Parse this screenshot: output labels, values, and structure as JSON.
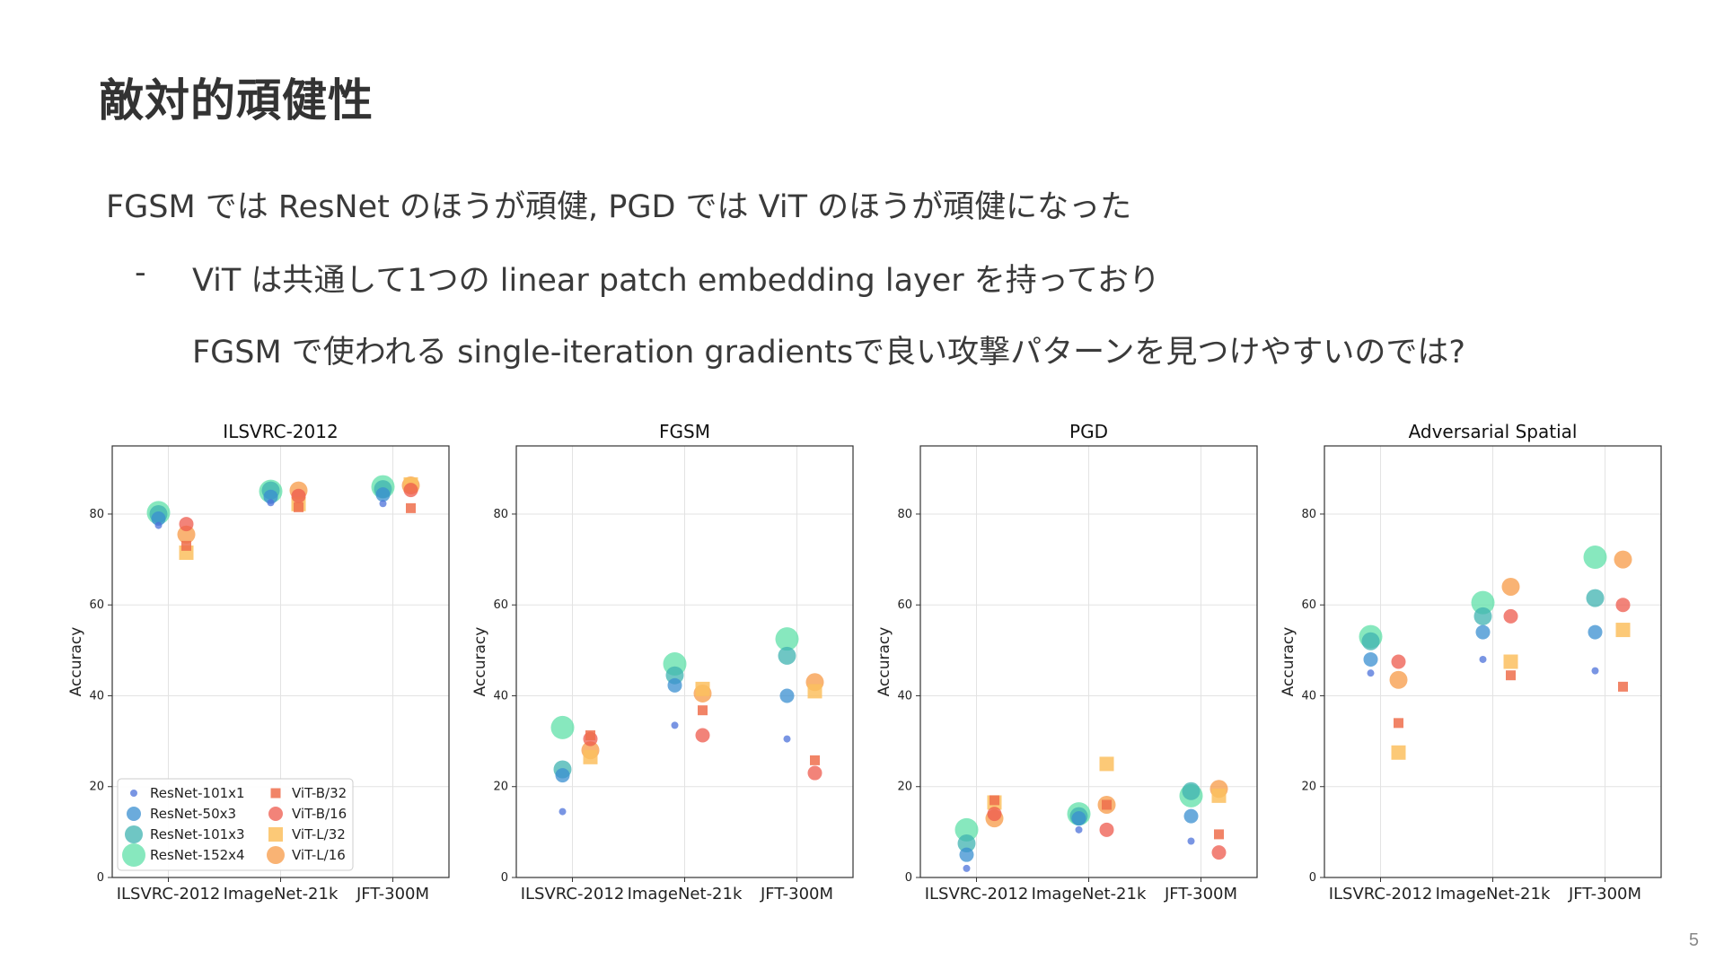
{
  "slide": {
    "title": "敵対的頑健性",
    "line1": "FGSM では ResNet のほうが頑健, PGD では ViT のほうが頑健になった",
    "bullet_marker": "-",
    "line2": "ViT は共通して1つの linear patch embedding layer を持っており",
    "line3": "FGSM で使われる single-iteration gradientsで良い攻撃パターンを見つけやすいのでは?",
    "page_number": "5"
  },
  "chart_data": [
    {
      "type": "scatter",
      "title": "ILSVRC-2012",
      "ylabel": "Accuracy",
      "categories": [
        "ILSVRC-2012",
        "ImageNet-21k",
        "JFT-300M"
      ],
      "ylim": [
        0,
        95
      ],
      "yticks": [
        0,
        20,
        40,
        60,
        80
      ],
      "grid": true,
      "legend": "lower-left",
      "series": [
        {
          "name": "ResNet-101x1",
          "values": [
            77.5,
            82.5,
            82.3
          ]
        },
        {
          "name": "ResNet-50x3",
          "values": [
            79.0,
            83.8,
            84.3
          ]
        },
        {
          "name": "ResNet-101x3",
          "values": [
            80.0,
            85.2,
            85.5
          ]
        },
        {
          "name": "ResNet-152x4",
          "values": [
            80.3,
            85.0,
            86.0
          ]
        },
        {
          "name": "ViT-B/32",
          "values": [
            73.0,
            81.5,
            81.3
          ]
        },
        {
          "name": "ViT-B/16",
          "values": [
            77.8,
            84.0,
            85.3
          ]
        },
        {
          "name": "ViT-L/32",
          "values": [
            71.5,
            82.2,
            86.5
          ]
        },
        {
          "name": "ViT-L/16",
          "values": [
            75.5,
            85.2,
            86.3
          ]
        }
      ]
    },
    {
      "type": "scatter",
      "title": "FGSM",
      "ylabel": "Accuracy",
      "categories": [
        "ILSVRC-2012",
        "ImageNet-21k",
        "JFT-300M"
      ],
      "ylim": [
        0,
        95
      ],
      "yticks": [
        0,
        20,
        40,
        60,
        80
      ],
      "grid": true,
      "series": [
        {
          "name": "ResNet-101x1",
          "values": [
            14.5,
            33.5,
            30.5
          ]
        },
        {
          "name": "ResNet-50x3",
          "values": [
            22.5,
            42.3,
            40.0
          ]
        },
        {
          "name": "ResNet-101x3",
          "values": [
            23.8,
            44.5,
            48.8
          ]
        },
        {
          "name": "ResNet-152x4",
          "values": [
            33.0,
            47.0,
            52.5
          ]
        },
        {
          "name": "ViT-B/32",
          "values": [
            31.3,
            36.8,
            25.8
          ]
        },
        {
          "name": "ViT-B/16",
          "values": [
            30.5,
            31.3,
            23.0
          ]
        },
        {
          "name": "ViT-L/32",
          "values": [
            26.5,
            41.5,
            41.0
          ]
        },
        {
          "name": "ViT-L/16",
          "values": [
            28.0,
            40.5,
            43.0
          ]
        }
      ]
    },
    {
      "type": "scatter",
      "title": "PGD",
      "ylabel": "Accuracy",
      "categories": [
        "ILSVRC-2012",
        "ImageNet-21k",
        "JFT-300M"
      ],
      "ylim": [
        0,
        95
      ],
      "yticks": [
        0,
        20,
        40,
        60,
        80
      ],
      "grid": true,
      "series": [
        {
          "name": "ResNet-101x1",
          "values": [
            2.0,
            10.5,
            8.0
          ]
        },
        {
          "name": "ResNet-50x3",
          "values": [
            5.0,
            13.0,
            13.5
          ]
        },
        {
          "name": "ResNet-101x3",
          "values": [
            7.5,
            13.5,
            19.0
          ]
        },
        {
          "name": "ResNet-152x4",
          "values": [
            10.5,
            14.0,
            18.0
          ]
        },
        {
          "name": "ViT-B/32",
          "values": [
            17.0,
            16.0,
            9.5
          ]
        },
        {
          "name": "ViT-B/16",
          "values": [
            14.0,
            10.5,
            5.5
          ]
        },
        {
          "name": "ViT-L/32",
          "values": [
            16.5,
            25.0,
            18.0
          ]
        },
        {
          "name": "ViT-L/16",
          "values": [
            13.0,
            16.0,
            19.5
          ]
        }
      ]
    },
    {
      "type": "scatter",
      "title": "Adversarial Spatial",
      "ylabel": "Accuracy",
      "categories": [
        "ILSVRC-2012",
        "ImageNet-21k",
        "JFT-300M"
      ],
      "ylim": [
        0,
        95
      ],
      "yticks": [
        0,
        20,
        40,
        60,
        80
      ],
      "grid": true,
      "series": [
        {
          "name": "ResNet-101x1",
          "values": [
            45.0,
            48.0,
            45.5
          ]
        },
        {
          "name": "ResNet-50x3",
          "values": [
            48.0,
            54.0,
            54.0
          ]
        },
        {
          "name": "ResNet-101x3",
          "values": [
            52.0,
            57.5,
            61.5
          ]
        },
        {
          "name": "ResNet-152x4",
          "values": [
            53.0,
            60.5,
            70.5
          ]
        },
        {
          "name": "ViT-B/32",
          "values": [
            34.0,
            44.5,
            42.0
          ]
        },
        {
          "name": "ViT-B/16",
          "values": [
            47.5,
            57.5,
            60.0
          ]
        },
        {
          "name": "ViT-L/32",
          "values": [
            27.5,
            47.5,
            54.5
          ]
        },
        {
          "name": "ViT-L/16",
          "values": [
            43.5,
            64.0,
            70.0
          ]
        }
      ]
    }
  ],
  "series_style": [
    {
      "color": "#4c72d9",
      "shape": "circle",
      "size": "xs"
    },
    {
      "color": "#3a8fd0",
      "shape": "circle",
      "size": "sm"
    },
    {
      "color": "#3fb3b0",
      "shape": "circle",
      "size": "md"
    },
    {
      "color": "#5fe0a8",
      "shape": "circle",
      "size": "lg"
    },
    {
      "color": "#ee6e4c",
      "shape": "square",
      "size": "xs"
    },
    {
      "color": "#ee5a4c",
      "shape": "circle",
      "size": "sm"
    },
    {
      "color": "#fbbf5f",
      "shape": "square",
      "size": "md"
    },
    {
      "color": "#f79a45",
      "shape": "circle",
      "size": "md"
    }
  ]
}
